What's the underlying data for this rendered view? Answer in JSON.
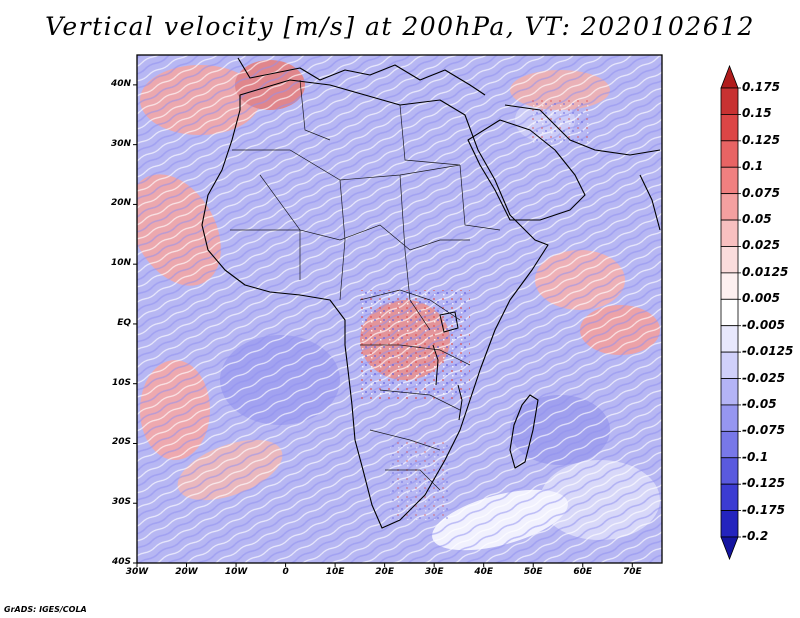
{
  "title": "Vertical velocity [m/s] at 200hPa, VT: 2020102612",
  "credit": "GrADS: IGES/COLA",
  "map": {
    "projection": "latlon",
    "lon_range": [
      -30,
      76
    ],
    "lat_range": [
      -40,
      45
    ],
    "lat_ticks": [
      {
        "value": 40,
        "label": "40N"
      },
      {
        "value": 30,
        "label": "30N"
      },
      {
        "value": 20,
        "label": "20N"
      },
      {
        "value": 10,
        "label": "10N"
      },
      {
        "value": 0,
        "label": "EQ"
      },
      {
        "value": -10,
        "label": "10S"
      },
      {
        "value": -20,
        "label": "20S"
      },
      {
        "value": -30,
        "label": "30S"
      },
      {
        "value": -40,
        "label": "40S"
      }
    ],
    "lon_ticks": [
      {
        "value": -30,
        "label": "30W"
      },
      {
        "value": -20,
        "label": "20W"
      },
      {
        "value": -10,
        "label": "10W"
      },
      {
        "value": 0,
        "label": "0"
      },
      {
        "value": 10,
        "label": "10E"
      },
      {
        "value": 20,
        "label": "20E"
      },
      {
        "value": 30,
        "label": "30E"
      },
      {
        "value": 40,
        "label": "40E"
      },
      {
        "value": 50,
        "label": "50E"
      },
      {
        "value": 60,
        "label": "60E"
      },
      {
        "value": 70,
        "label": "70E"
      }
    ]
  },
  "colorbar": {
    "levels": [
      "0.175",
      "0.15",
      "0.125",
      "0.1",
      "0.075",
      "0.05",
      "0.025",
      "0.0125",
      "0.005",
      "-0.005",
      "-0.0125",
      "-0.025",
      "-0.05",
      "-0.075",
      "-0.1",
      "-0.125",
      "-0.175",
      "-0.2"
    ],
    "colors": [
      "#b01c1c",
      "#c83232",
      "#dc4646",
      "#e86464",
      "#f08080",
      "#f4a0a0",
      "#f8c0c0",
      "#fadcdc",
      "#fdf0f0",
      "#ffffff",
      "#e8e8fc",
      "#d0d0fa",
      "#b4b4f6",
      "#9696f0",
      "#7878e8",
      "#5a5ade",
      "#3c3cd2",
      "#2424be",
      "#1414a0"
    ]
  }
}
